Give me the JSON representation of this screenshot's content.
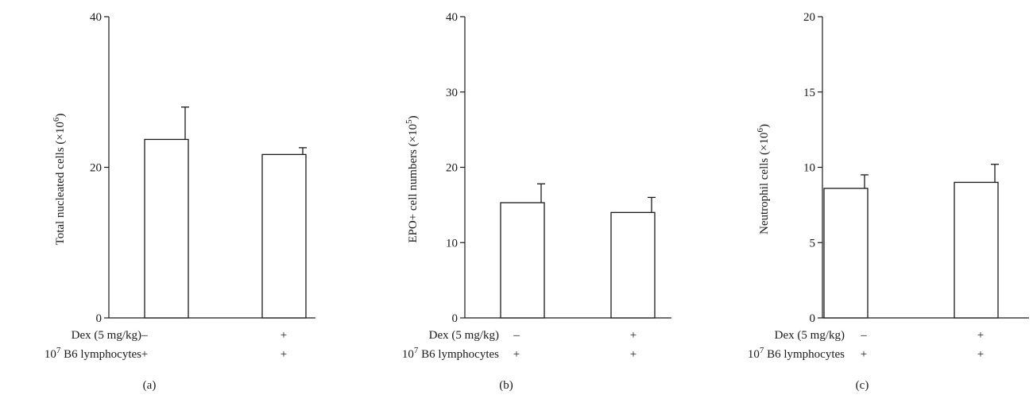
{
  "chart_data": [
    {
      "type": "bar",
      "panel_label": "(a)",
      "ylabel": "Total nucleated cells (×10",
      "ylabel_sup": "6",
      "ylabel_close": ")",
      "ylim": [
        0,
        40
      ],
      "yticks": [
        0,
        20,
        40
      ],
      "categories": [
        "group-1",
        "group-2"
      ],
      "values": [
        23.7,
        21.7
      ],
      "errors": [
        4.3,
        0.9
      ],
      "conditions": [
        {
          "label": "Dex (5 mg/kg)",
          "marks": [
            "–",
            "+"
          ]
        },
        {
          "label_sup": "7",
          "label_prefix": "10",
          "label": " B6 lymphocytes",
          "marks": [
            "+",
            "+"
          ]
        }
      ]
    },
    {
      "type": "bar",
      "panel_label": "(b)",
      "ylabel": "EPO+ cell numbers (×10",
      "ylabel_sup": "5",
      "ylabel_close": ")",
      "ylim": [
        0,
        40
      ],
      "yticks": [
        0,
        10,
        20,
        30,
        40
      ],
      "categories": [
        "group-1",
        "group-2"
      ],
      "values": [
        15.3,
        14.0
      ],
      "errors": [
        2.5,
        2.0
      ],
      "conditions": [
        {
          "label": "Dex (5 mg/kg)",
          "marks": [
            "–",
            "+"
          ]
        },
        {
          "label_sup": "7",
          "label_prefix": "10",
          "label": " B6 lymphocytes",
          "marks": [
            "+",
            "+"
          ]
        }
      ]
    },
    {
      "type": "bar",
      "panel_label": "(c)",
      "ylabel": "Neutrophil cells (×10",
      "ylabel_sup": "6",
      "ylabel_close": ")",
      "ylim": [
        0,
        20
      ],
      "yticks": [
        0,
        5,
        10,
        15,
        20
      ],
      "categories": [
        "group-1",
        "group-2"
      ],
      "values": [
        8.6,
        9.0
      ],
      "errors": [
        0.9,
        1.2
      ],
      "conditions": [
        {
          "label": "Dex (5 mg/kg)",
          "marks": [
            "–",
            "+"
          ]
        },
        {
          "label_sup": "7",
          "label_prefix": "10",
          "label": " B6 lymphocytes",
          "marks": [
            "+",
            "+"
          ]
        }
      ]
    }
  ]
}
